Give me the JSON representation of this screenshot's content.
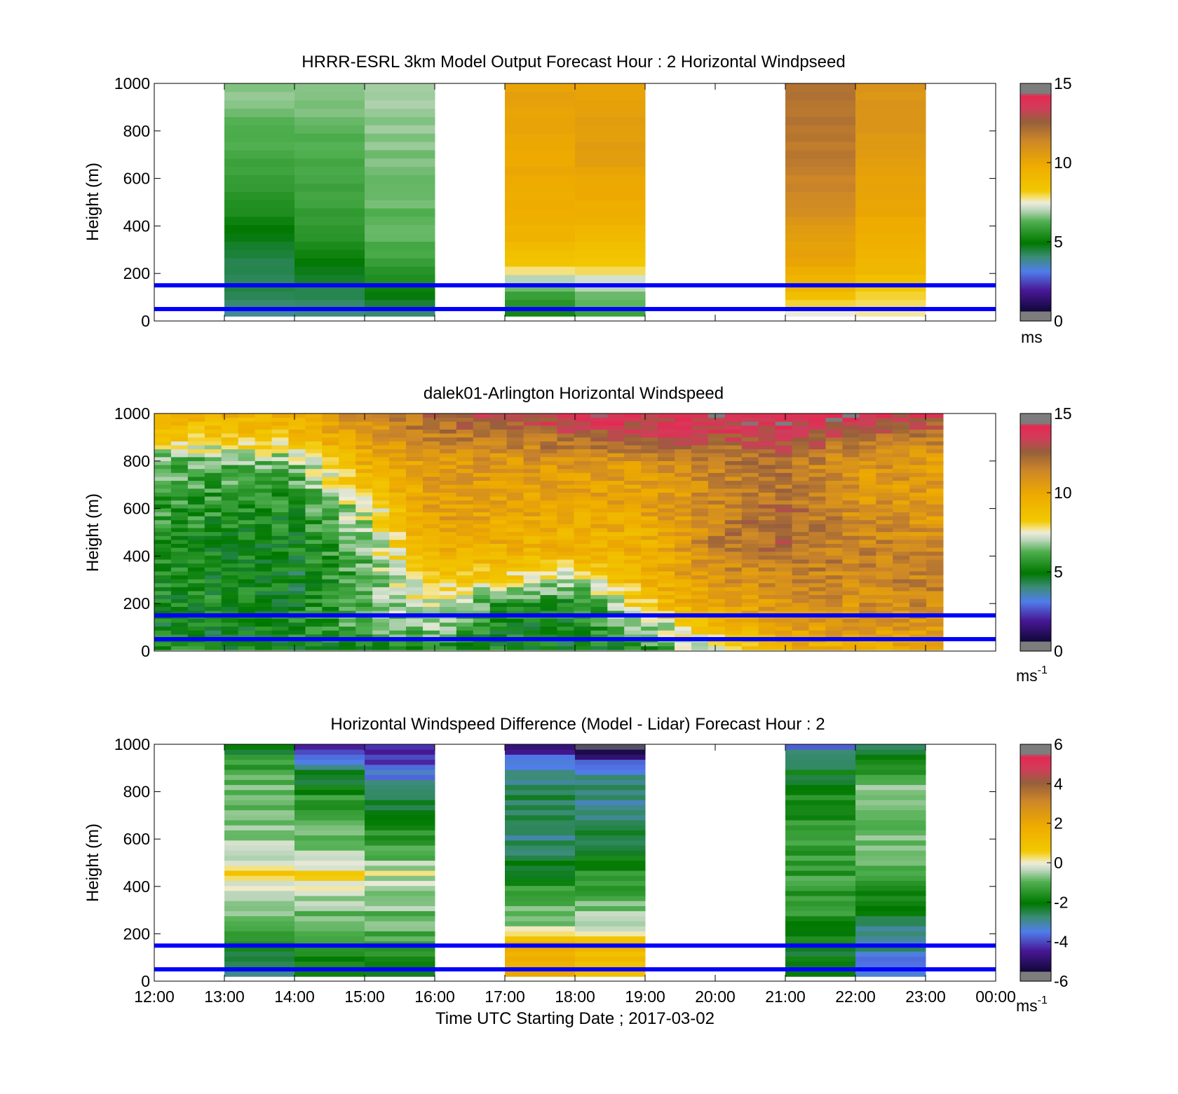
{
  "figure": {
    "xlabel": "Time UTC  Starting Date ; 2017-03-02"
  },
  "chart_data": [
    {
      "type": "heatmap",
      "title": "HRRR-ESRL 3km Model Output   Forecast Hour : 2 Horizontal Windpseed",
      "xlabel": "Time UTC  Starting Date ; 2017-03-02",
      "ylabel": "Height (m)",
      "x_range": [
        "12:00",
        "00:00"
      ],
      "x_ticks": [
        "12:00",
        "13:00",
        "14:00",
        "15:00",
        "16:00",
        "17:00",
        "18:00",
        "19:00",
        "20:00",
        "21:00",
        "22:00",
        "23:00",
        "00:00"
      ],
      "ylim": [
        0,
        1000
      ],
      "y_ticks": [
        0,
        200,
        400,
        600,
        800,
        1000
      ],
      "reference_lines_m": [
        50,
        150
      ],
      "reference_line_color": "#0000ff",
      "colorbar": {
        "range": [
          0,
          15
        ],
        "ticks": [
          0,
          5,
          10,
          15
        ],
        "unit": "ms"
      },
      "columns": [
        {
          "time": "13:00",
          "profile": [
            3.8,
            4.5,
            4.2,
            4.8,
            5.4,
            5.8,
            6.1,
            6.3,
            6.6,
            6.8
          ]
        },
        {
          "time": "14:00",
          "profile": [
            3.8,
            4.4,
            4.9,
            5.6,
            5.9,
            6.0,
            6.1,
            6.3,
            6.6,
            6.8
          ]
        },
        {
          "time": "15:00",
          "profile": [
            3.9,
            5.1,
            5.9,
            6.3,
            6.4,
            6.5,
            6.6,
            6.7,
            6.8,
            7.0
          ]
        },
        {
          "time": "17:00",
          "profile": [
            5.0,
            6.3,
            8.2,
            9.3,
            9.7,
            9.9,
            10.0,
            10.1,
            10.2,
            10.3
          ]
        },
        {
          "time": "18:00",
          "profile": [
            5.8,
            6.8,
            8.1,
            9.0,
            9.6,
            10.0,
            10.4,
            10.4,
            10.3,
            10.2
          ]
        },
        {
          "time": "21:00",
          "profile": [
            7.0,
            9.1,
            10.0,
            10.5,
            11.0,
            11.4,
            11.7,
            11.9,
            12.0,
            12.0
          ]
        },
        {
          "time": "22:00",
          "profile": [
            7.4,
            8.3,
            9.3,
            9.7,
            10.0,
            10.2,
            10.5,
            10.7,
            10.8,
            10.8
          ]
        }
      ]
    },
    {
      "type": "heatmap",
      "title": "dalek01-Arlington  Horizontal Windspeed",
      "xlabel": "Time UTC  Starting Date ; 2017-03-02",
      "ylabel": "Height (m)",
      "x_range": [
        "12:00",
        "00:00"
      ],
      "x_ticks": [
        "12:00",
        "13:00",
        "14:00",
        "15:00",
        "16:00",
        "17:00",
        "18:00",
        "19:00",
        "20:00",
        "21:00",
        "22:00",
        "23:00",
        "00:00"
      ],
      "ylim": [
        0,
        1000
      ],
      "y_ticks": [
        0,
        200,
        400,
        600,
        800,
        1000
      ],
      "reference_lines_m": [
        50,
        150
      ],
      "reference_line_color": "#0000ff",
      "colorbar": {
        "range": [
          0,
          15
        ],
        "ticks": [
          0,
          5,
          10,
          15
        ],
        "unit": "ms",
        "unit_exponent": "-1"
      },
      "data_extent": [
        "12:00",
        "23:15"
      ],
      "time_steps": [
        "12:00",
        "13:00",
        "14:00",
        "15:00",
        "16:00",
        "17:00",
        "18:00",
        "19:00",
        "20:00",
        "21:00",
        "22:00",
        "23:00",
        "23:15"
      ],
      "profiles_by_time": [
        [
          5.3,
          5.0,
          5.2,
          5.4,
          5.5,
          5.6,
          5.8,
          6.0,
          6.3,
          8.6,
          9.6
        ],
        [
          5.1,
          5.0,
          5.3,
          5.2,
          5.3,
          5.4,
          5.6,
          5.9,
          6.4,
          8.5,
          9.6
        ],
        [
          4.8,
          5.6,
          5.0,
          4.8,
          5.0,
          5.2,
          5.4,
          6.0,
          6.8,
          8.8,
          9.8
        ],
        [
          5.0,
          6.3,
          6.5,
          6.2,
          6.5,
          6.8,
          7.4,
          8.9,
          9.6,
          10.6,
          11.5
        ],
        [
          5.2,
          6.8,
          7.2,
          8.6,
          9.5,
          10.2,
          10.4,
          10.5,
          10.6,
          11.5,
          12.5
        ],
        [
          5.0,
          5.2,
          5.5,
          7.8,
          9.3,
          9.8,
          10.2,
          10.4,
          10.8,
          12.0,
          13.5
        ],
        [
          5.0,
          5.0,
          5.4,
          7.0,
          9.1,
          9.6,
          9.9,
          10.2,
          10.7,
          12.5,
          13.8
        ],
        [
          5.4,
          6.5,
          8.4,
          9.3,
          9.5,
          9.7,
          10.2,
          10.5,
          11.0,
          13.0,
          14.0
        ],
        [
          7.6,
          8.8,
          10.2,
          10.8,
          11.3,
          11.6,
          11.4,
          11.2,
          11.6,
          13.0,
          14.2
        ],
        [
          9.4,
          10.2,
          10.8,
          11.2,
          12.0,
          12.5,
          12.2,
          11.8,
          12.0,
          13.2,
          14.2
        ],
        [
          9.6,
          10.6,
          11.0,
          11.3,
          11.5,
          11.3,
          11.0,
          10.8,
          10.9,
          12.5,
          14.0
        ],
        [
          9.8,
          10.8,
          11.2,
          11.5,
          11.3,
          11.0,
          10.7,
          10.6,
          10.7,
          11.8,
          13.5
        ],
        [
          9.8,
          10.8,
          11.2,
          11.4,
          11.2,
          10.9,
          10.6,
          10.5,
          10.6,
          11.5,
          13.2
        ]
      ],
      "profile_heights_m": [
        0,
        100,
        200,
        300,
        400,
        500,
        600,
        700,
        800,
        900,
        1000
      ]
    },
    {
      "type": "heatmap",
      "title": "Horizontal Windspeed Difference (Model - Lidar) Forecast Hour : 2",
      "xlabel": "Time UTC  Starting Date ; 2017-03-02",
      "ylabel": "Height (m)",
      "x_range": [
        "12:00",
        "00:00"
      ],
      "x_ticks": [
        "12:00",
        "13:00",
        "14:00",
        "15:00",
        "16:00",
        "17:00",
        "18:00",
        "19:00",
        "20:00",
        "21:00",
        "22:00",
        "23:00",
        "00:00"
      ],
      "ylim": [
        0,
        1000
      ],
      "y_ticks": [
        0,
        200,
        400,
        600,
        800,
        1000
      ],
      "reference_lines_m": [
        50,
        150
      ],
      "reference_line_color": "#0000ff",
      "colorbar": {
        "range": [
          -6,
          6
        ],
        "ticks": [
          -6,
          -4,
          -2,
          0,
          2,
          4,
          6
        ],
        "unit": "ms",
        "unit_exponent": "-1"
      },
      "columns": [
        {
          "time": "13:00",
          "profile": [
            -2.6,
            -2.2,
            -0.9,
            -0.5,
            0.6,
            -0.4,
            -0.5,
            -0.8,
            -1.0,
            -2.4
          ]
        },
        {
          "time": "14:00",
          "profile": [
            -2.2,
            -1.5,
            -0.8,
            -0.6,
            0.3,
            -0.7,
            -1.0,
            -1.5,
            -2.5,
            -4.8
          ]
        },
        {
          "time": "15:00",
          "profile": [
            -2.5,
            -1.3,
            -1.0,
            -0.6,
            -0.2,
            -1.2,
            -1.8,
            -2.6,
            -3.8,
            -4.2
          ]
        },
        {
          "time": "17:00",
          "profile": [
            1.8,
            2.0,
            -0.7,
            -1.0,
            -2.0,
            -2.8,
            -2.6,
            -2.4,
            -2.8,
            -5.0
          ]
        },
        {
          "time": "18:00",
          "profile": [
            1.0,
            1.3,
            -0.5,
            -0.9,
            -1.6,
            -2.4,
            -2.6,
            -2.8,
            -3.2,
            -5.6
          ]
        },
        {
          "time": "21:00",
          "profile": [
            -2.6,
            -2.0,
            -1.6,
            -1.5,
            -1.3,
            -1.2,
            -1.4,
            -1.6,
            -2.2,
            -3.5
          ]
        },
        {
          "time": "22:00",
          "profile": [
            -3.8,
            -3.0,
            -2.6,
            -1.8,
            -1.0,
            -0.8,
            -0.6,
            -0.4,
            -1.5,
            -2.6
          ]
        }
      ]
    }
  ]
}
